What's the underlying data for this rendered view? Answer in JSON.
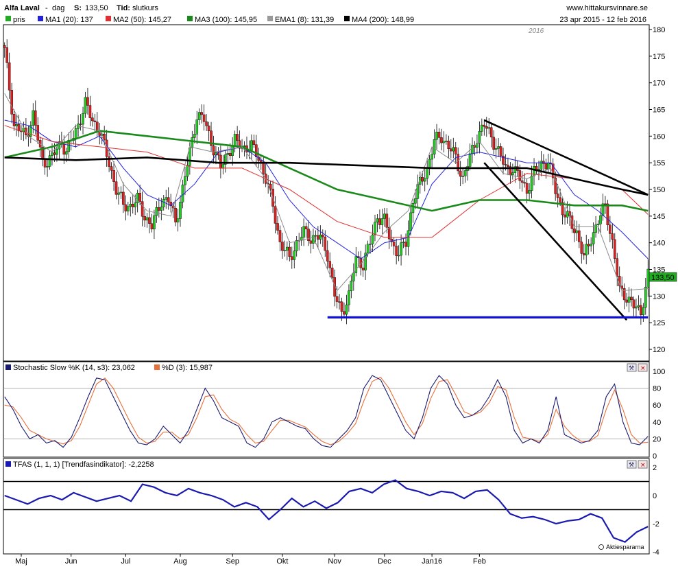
{
  "header": {
    "name": "Alfa Laval",
    "separator": "-",
    "period": "dag",
    "s_label": "S:",
    "s_value": "133,50",
    "tid_label": "Tid:",
    "tid_value": "slutkurs",
    "site": "www.hittakursvinnare.se"
  },
  "legend": {
    "items": [
      {
        "label": "pris",
        "color": "#22aa22"
      },
      {
        "label": "MA1 (20): 137",
        "color": "#2222dd"
      },
      {
        "label": "MA2 (50): 145,27",
        "color": "#e03030"
      },
      {
        "label": "MA3 (100): 145,95",
        "color": "#1a8a1a"
      },
      {
        "label": "EMA1 (8): 131,39",
        "color": "#999999"
      },
      {
        "label": "MA4 (200): 148,99",
        "color": "#000000"
      }
    ],
    "date_range": "23 apr 2015 - 12 feb 2016"
  },
  "year_marker": "2016",
  "last_price_tag": "133,50",
  "stoch": {
    "k_label": "Stochastic Slow %K (14, s3): 23,062",
    "d_label": "%D (3): 15,987",
    "k_color": "#1a1a6e",
    "d_color": "#e8703a",
    "ref_level": "80"
  },
  "tfas": {
    "label": "TFAS (1, 1, 1) [Trendfasindikator]: -2,2258",
    "color": "#1a1ab0"
  },
  "watermark": "Aktiespararna",
  "chart_data": [
    {
      "type": "candlestick",
      "title": "Alfa Laval - dag",
      "ylim": [
        120,
        180
      ],
      "y_ticks": [
        "180",
        "175",
        "170",
        "165",
        "160",
        "155",
        "150",
        "145",
        "140",
        "135",
        "130",
        "125",
        "120"
      ],
      "x_ticks": [
        "Maj",
        "Jun",
        "Jul",
        "Aug",
        "Sep",
        "Okt",
        "Nov",
        "Dec",
        "Jan16",
        "Feb"
      ],
      "price_points": [
        [
          0,
          176
        ],
        [
          4,
          162
        ],
        [
          9,
          160
        ],
        [
          12,
          164
        ],
        [
          16,
          155
        ],
        [
          20,
          156
        ],
        [
          24,
          159
        ],
        [
          26,
          157
        ],
        [
          30,
          161
        ],
        [
          34,
          166
        ],
        [
          37,
          163
        ],
        [
          40,
          161
        ],
        [
          44,
          155
        ],
        [
          47,
          150
        ],
        [
          50,
          147
        ],
        [
          53,
          147
        ],
        [
          56,
          148
        ],
        [
          59,
          145
        ],
        [
          62,
          143
        ],
        [
          66,
          148
        ],
        [
          69,
          148
        ],
        [
          72,
          144
        ],
        [
          75,
          150
        ],
        [
          78,
          157
        ],
        [
          81,
          164
        ],
        [
          84,
          163
        ],
        [
          87,
          159
        ],
        [
          91,
          154
        ],
        [
          94,
          157
        ],
        [
          97,
          159
        ],
        [
          100,
          158
        ],
        [
          104,
          158
        ],
        [
          107,
          156
        ],
        [
          110,
          152
        ],
        [
          113,
          147
        ],
        [
          116,
          140
        ],
        [
          120,
          137
        ],
        [
          123,
          140
        ],
        [
          126,
          142
        ],
        [
          129,
          141
        ],
        [
          133,
          141
        ],
        [
          136,
          138
        ],
        [
          139,
          130
        ],
        [
          142,
          127
        ],
        [
          145,
          130
        ],
        [
          148,
          137
        ],
        [
          151,
          136
        ],
        [
          154,
          140
        ],
        [
          157,
          145
        ],
        [
          160,
          144
        ],
        [
          163,
          140
        ],
        [
          166,
          138
        ],
        [
          169,
          140
        ],
        [
          172,
          148
        ],
        [
          175,
          151
        ],
        [
          178,
          154
        ],
        [
          181,
          159
        ],
        [
          184,
          160
        ],
        [
          187,
          158
        ],
        [
          190,
          156
        ],
        [
          193,
          152
        ],
        [
          196,
          156
        ],
        [
          199,
          160
        ],
        [
          202,
          162
        ],
        [
          205,
          160
        ],
        [
          208,
          157
        ],
        [
          211,
          154
        ],
        [
          214,
          154
        ],
        [
          217,
          152
        ],
        [
          220,
          150
        ],
        [
          223,
          153
        ],
        [
          226,
          155
        ],
        [
          229,
          155
        ],
        [
          232,
          150
        ],
        [
          235,
          146
        ],
        [
          238,
          144
        ],
        [
          241,
          142
        ],
        [
          244,
          137
        ],
        [
          247,
          141
        ],
        [
          250,
          144
        ],
        [
          253,
          147
        ],
        [
          256,
          140
        ],
        [
          259,
          131
        ],
        [
          262,
          130
        ],
        [
          265,
          128
        ],
        [
          268,
          127
        ],
        [
          271,
          134
        ]
      ],
      "series": [
        {
          "name": "MA1 (20)",
          "points": [
            [
              0,
              163
            ],
            [
              10,
              162
            ],
            [
              20,
              159
            ],
            [
              30,
              158
            ],
            [
              40,
              160
            ],
            [
              50,
              154
            ],
            [
              60,
              149
            ],
            [
              70,
              147
            ],
            [
              80,
              151
            ],
            [
              90,
              157
            ],
            [
              100,
              158
            ],
            [
              110,
              155
            ],
            [
              120,
              148
            ],
            [
              130,
              143
            ],
            [
              140,
              140
            ],
            [
              150,
              137
            ],
            [
              160,
              140
            ],
            [
              170,
              141
            ],
            [
              180,
              151
            ],
            [
              190,
              156
            ],
            [
              200,
              157
            ],
            [
              210,
              156
            ],
            [
              220,
              155
            ],
            [
              230,
              155
            ],
            [
              240,
              149
            ],
            [
              250,
              146
            ],
            [
              260,
              142
            ],
            [
              271,
              137
            ]
          ]
        },
        {
          "name": "MA2 (50)",
          "points": [
            [
              0,
              162
            ],
            [
              20,
              159
            ],
            [
              40,
              158
            ],
            [
              60,
              157
            ],
            [
              80,
              154
            ],
            [
              100,
              154
            ],
            [
              120,
              150
            ],
            [
              140,
              144
            ],
            [
              160,
              141
            ],
            [
              180,
              141
            ],
            [
              200,
              148
            ],
            [
              220,
              153
            ],
            [
              240,
              152
            ],
            [
              260,
              150
            ],
            [
              271,
              145.3
            ]
          ]
        },
        {
          "name": "MA3 (100)",
          "points": [
            [
              0,
              156
            ],
            [
              20,
              158
            ],
            [
              40,
              161
            ],
            [
              60,
              160
            ],
            [
              80,
              159
            ],
            [
              100,
              158
            ],
            [
              120,
              154
            ],
            [
              140,
              150
            ],
            [
              160,
              148
            ],
            [
              180,
              146
            ],
            [
              200,
              148
            ],
            [
              220,
              148
            ],
            [
              240,
              147
            ],
            [
              260,
              147
            ],
            [
              271,
              146
            ]
          ]
        },
        {
          "name": "EMA1 (8)",
          "points": [
            [
              0,
              168
            ],
            [
              10,
              160
            ],
            [
              20,
              157
            ],
            [
              30,
              162
            ],
            [
              40,
              161
            ],
            [
              50,
              151
            ],
            [
              60,
              146
            ],
            [
              70,
              145
            ],
            [
              78,
              158
            ],
            [
              88,
              157
            ],
            [
              100,
              158
            ],
            [
              110,
              152
            ],
            [
              120,
              140
            ],
            [
              130,
              141
            ],
            [
              140,
              131
            ],
            [
              150,
              136
            ],
            [
              160,
              142
            ],
            [
              170,
              146
            ],
            [
              180,
              158
            ],
            [
              190,
              155
            ],
            [
              200,
              159
            ],
            [
              210,
              153
            ],
            [
              220,
              152
            ],
            [
              230,
              154
            ],
            [
              240,
              143
            ],
            [
              250,
              143
            ],
            [
              260,
              131
            ],
            [
              271,
              131.4
            ]
          ]
        },
        {
          "name": "MA4 (200)",
          "points": [
            [
              0,
              156
            ],
            [
              30,
              155.5
            ],
            [
              60,
              156
            ],
            [
              90,
              155
            ],
            [
              120,
              155
            ],
            [
              150,
              154.5
            ],
            [
              180,
              154
            ],
            [
              200,
              154
            ],
            [
              220,
              154
            ],
            [
              240,
              152
            ],
            [
              260,
              150
            ],
            [
              271,
              149
            ]
          ]
        }
      ],
      "trendlines": [
        {
          "from": [
            202,
            163
          ],
          "to": [
            271,
            149
          ]
        },
        {
          "from": [
            202,
            155
          ],
          "to": [
            262,
            125.5
          ]
        },
        {
          "from": [
            136,
            126
          ],
          "to": [
            271,
            126
          ]
        }
      ]
    },
    {
      "type": "line",
      "title": "Stochastic Slow",
      "ylim": [
        0,
        100
      ],
      "y_ticks": [
        "100",
        "80",
        "60",
        "40",
        "20",
        "0"
      ],
      "series": [
        {
          "name": "%K",
          "values": [
            70,
            55,
            35,
            20,
            25,
            15,
            18,
            10,
            22,
            45,
            70,
            92,
            90,
            70,
            50,
            30,
            15,
            13,
            20,
            35,
            25,
            15,
            30,
            55,
            80,
            65,
            45,
            40,
            35,
            15,
            10,
            20,
            40,
            45,
            40,
            35,
            32,
            20,
            12,
            10,
            20,
            30,
            45,
            80,
            95,
            90,
            70,
            50,
            30,
            20,
            45,
            80,
            95,
            85,
            60,
            45,
            48,
            55,
            70,
            90,
            70,
            30,
            15,
            20,
            15,
            30,
            70,
            25,
            20,
            15,
            18,
            30,
            70,
            85,
            40,
            15,
            13,
            23
          ]
        },
        {
          "name": "%D",
          "values": [
            60,
            58,
            45,
            30,
            25,
            20,
            17,
            14,
            18,
            35,
            60,
            85,
            92,
            80,
            60,
            40,
            22,
            15,
            17,
            28,
            28,
            20,
            25,
            45,
            70,
            72,
            55,
            43,
            38,
            25,
            15,
            17,
            30,
            42,
            42,
            38,
            34,
            25,
            17,
            13,
            17,
            26,
            38,
            65,
            88,
            93,
            80,
            60,
            40,
            25,
            38,
            68,
            88,
            90,
            72,
            52,
            48,
            52,
            63,
            82,
            78,
            45,
            22,
            20,
            17,
            25,
            55,
            35,
            24,
            17,
            17,
            24,
            55,
            78,
            55,
            25,
            15,
            16
          ]
        }
      ]
    },
    {
      "type": "line",
      "title": "TFAS",
      "ylim": [
        -4,
        2
      ],
      "y_ticks": [
        "2",
        "0",
        "-2",
        "-4"
      ],
      "reference_lines": [
        1,
        -1
      ],
      "series": [
        {
          "name": "TFAS",
          "values": [
            0,
            -0.3,
            -0.6,
            -0.2,
            0,
            -0.3,
            0.2,
            -0.1,
            -0.4,
            -0.2,
            0,
            -0.4,
            0.8,
            0.6,
            0.2,
            0,
            0.5,
            0.2,
            0,
            -0.3,
            -0.8,
            -0.5,
            -0.8,
            -1.7,
            -1.0,
            -0.2,
            -0.8,
            -0.4,
            -0.9,
            -0.5,
            0.3,
            0.5,
            0.2,
            0.8,
            1.1,
            0.5,
            0.3,
            0,
            0.3,
            0.2,
            -0.2,
            0.3,
            0.4,
            -0.3,
            -1.3,
            -1.6,
            -1.5,
            -1.7,
            -2.0,
            -1.8,
            -1.7,
            -1.3,
            -1.6,
            -3.0,
            -3.3,
            -2.6,
            -2.2
          ]
        }
      ]
    }
  ]
}
